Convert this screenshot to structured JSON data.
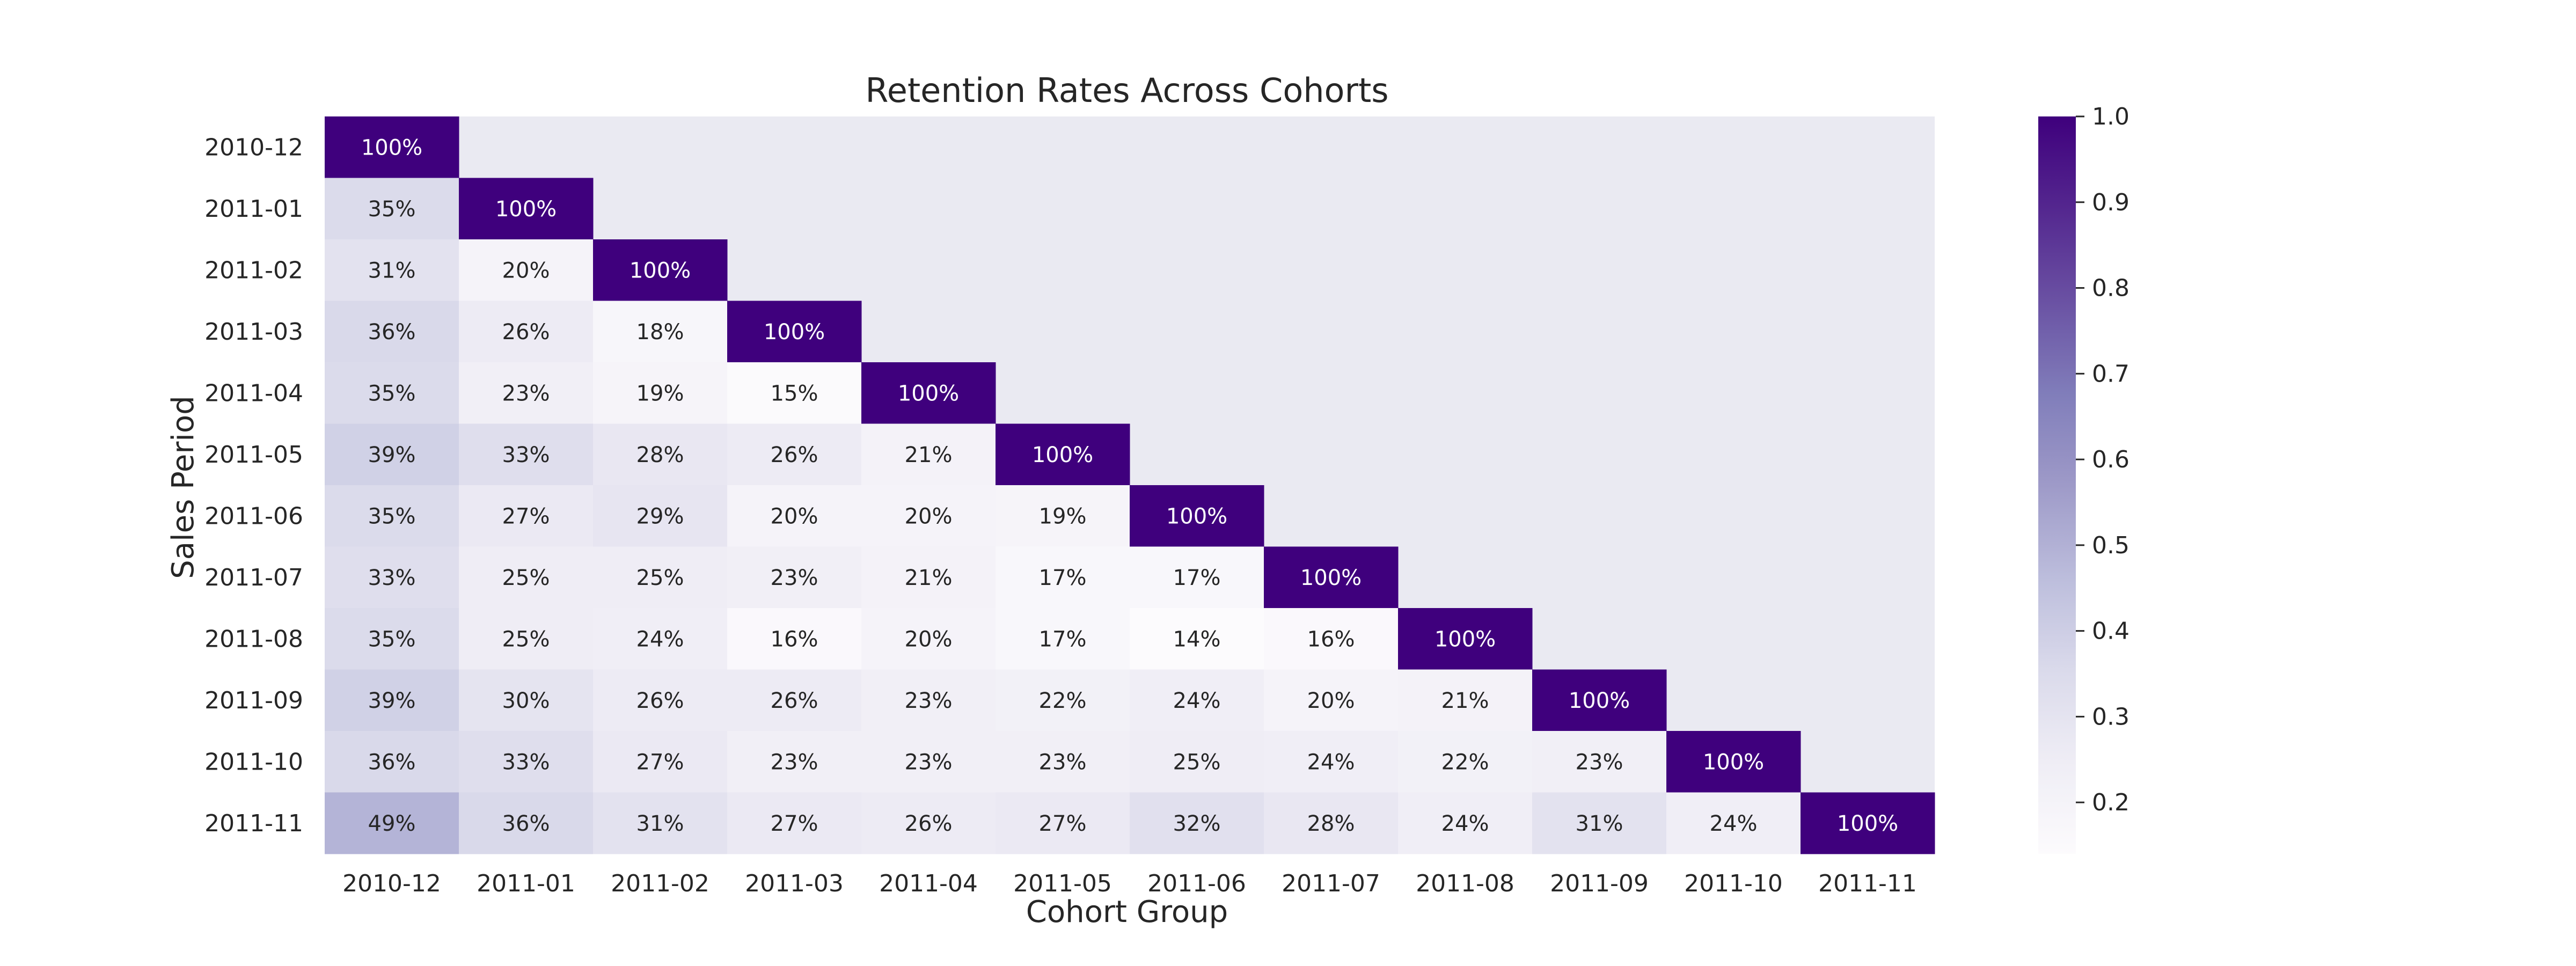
{
  "chart_data": {
    "type": "heatmap",
    "title": "Retention Rates Across Cohorts",
    "xlabel": "Cohort Group",
    "ylabel": "Sales Period",
    "x_categories": [
      "2010-12",
      "2011-01",
      "2011-02",
      "2011-03",
      "2011-04",
      "2011-05",
      "2011-06",
      "2011-07",
      "2011-08",
      "2011-09",
      "2011-10",
      "2011-11"
    ],
    "y_categories": [
      "2010-12",
      "2011-01",
      "2011-02",
      "2011-03",
      "2011-04",
      "2011-05",
      "2011-06",
      "2011-07",
      "2011-08",
      "2011-09",
      "2011-10",
      "2011-11"
    ],
    "values": [
      [
        1.0
      ],
      [
        0.35,
        1.0
      ],
      [
        0.31,
        0.2,
        1.0
      ],
      [
        0.36,
        0.26,
        0.18,
        1.0
      ],
      [
        0.35,
        0.23,
        0.19,
        0.15,
        1.0
      ],
      [
        0.39,
        0.33,
        0.28,
        0.26,
        0.21,
        1.0
      ],
      [
        0.35,
        0.27,
        0.29,
        0.2,
        0.2,
        0.19,
        1.0
      ],
      [
        0.33,
        0.25,
        0.25,
        0.23,
        0.21,
        0.17,
        0.17,
        1.0
      ],
      [
        0.35,
        0.25,
        0.24,
        0.16,
        0.2,
        0.17,
        0.14,
        0.16,
        1.0
      ],
      [
        0.39,
        0.3,
        0.26,
        0.26,
        0.23,
        0.22,
        0.24,
        0.2,
        0.21,
        1.0
      ],
      [
        0.36,
        0.33,
        0.27,
        0.23,
        0.23,
        0.23,
        0.25,
        0.24,
        0.22,
        0.23,
        1.0
      ],
      [
        0.49,
        0.36,
        0.31,
        0.27,
        0.26,
        0.27,
        0.32,
        0.28,
        0.24,
        0.31,
        0.24,
        1.0
      ]
    ],
    "cell_labels": [
      [
        "100%"
      ],
      [
        "35%",
        "100%"
      ],
      [
        "31%",
        "20%",
        "100%"
      ],
      [
        "36%",
        "26%",
        "18%",
        "100%"
      ],
      [
        "35%",
        "23%",
        "19%",
        "15%",
        "100%"
      ],
      [
        "39%",
        "33%",
        "28%",
        "26%",
        "21%",
        "100%"
      ],
      [
        "35%",
        "27%",
        "29%",
        "20%",
        "20%",
        "19%",
        "100%"
      ],
      [
        "33%",
        "25%",
        "25%",
        "23%",
        "21%",
        "17%",
        "17%",
        "100%"
      ],
      [
        "35%",
        "25%",
        "24%",
        "16%",
        "20%",
        "17%",
        "14%",
        "16%",
        "100%"
      ],
      [
        "39%",
        "30%",
        "26%",
        "26%",
        "23%",
        "22%",
        "24%",
        "20%",
        "21%",
        "100%"
      ],
      [
        "36%",
        "33%",
        "27%",
        "23%",
        "23%",
        "23%",
        "25%",
        "24%",
        "22%",
        "23%",
        "100%"
      ],
      [
        "49%",
        "36%",
        "31%",
        "27%",
        "26%",
        "27%",
        "32%",
        "28%",
        "24%",
        "31%",
        "24%",
        "100%"
      ]
    ],
    "color_scale": {
      "name": "Purples",
      "vmin": 0.14,
      "vmax": 1.0,
      "ticks": [
        0.2,
        0.3,
        0.4,
        0.5,
        0.6,
        0.7,
        0.8,
        0.9,
        1.0
      ],
      "tick_labels": [
        "0.2",
        "0.3",
        "0.4",
        "0.5",
        "0.6",
        "0.7",
        "0.8",
        "0.9",
        "1.0"
      ]
    },
    "colors": {
      "background": "#eaeaf2",
      "text_dark": "#262626",
      "text_light": "#ffffff"
    },
    "grid": false,
    "legend": "colorbar-right"
  }
}
